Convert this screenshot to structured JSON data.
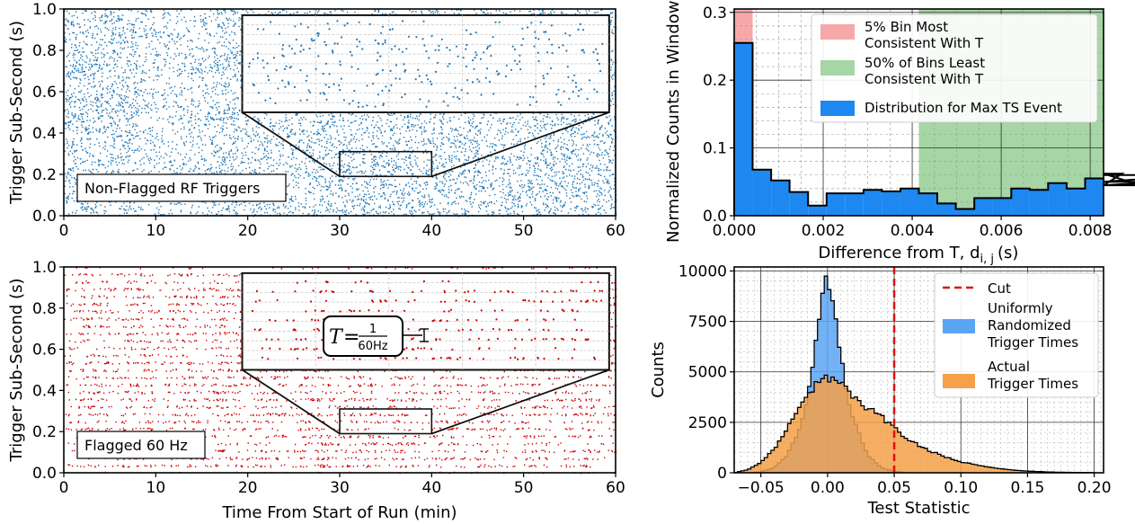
{
  "chart_data": [
    {
      "id": "A",
      "type": "scatter",
      "xlabel": "",
      "ylabel": "Trigger Sub-Second (s)",
      "xlim": [
        0,
        60
      ],
      "ylim": [
        0,
        1.0
      ],
      "xticks": [
        "0",
        "10",
        "20",
        "30",
        "40",
        "50",
        "60"
      ],
      "yticks": [
        "0.0",
        "0.2",
        "0.4",
        "0.6",
        "0.8",
        "1.0"
      ],
      "annotation": "Non-Flagged RF Triggers",
      "color": "#1f77b4",
      "distribution": "uniform",
      "inset": {
        "zoom_x": [
          30,
          40
        ],
        "zoom_y": [
          0.19,
          0.31
        ]
      }
    },
    {
      "id": "B",
      "type": "scatter",
      "xlabel": "Time From Start of Run (min)",
      "ylabel": "Trigger Sub-Second (s)",
      "xlim": [
        0,
        60
      ],
      "ylim": [
        0,
        1.0
      ],
      "xticks": [
        "0",
        "10",
        "20",
        "30",
        "40",
        "50",
        "60"
      ],
      "yticks": [
        "0.0",
        "0.2",
        "0.4",
        "0.6",
        "0.8",
        "1.0"
      ],
      "annotation": "Flagged 60 Hz",
      "color": "#cc0000",
      "distribution": "periodic bands",
      "inset": {
        "zoom_x": [
          30,
          40
        ],
        "zoom_y": [
          0.19,
          0.31
        ],
        "formula_lhs": "T",
        "formula_num": "1",
        "formula_den": "60Hz"
      }
    },
    {
      "id": "C",
      "type": "bar",
      "xlabel": "Difference from T, d",
      "xlabel_sub": "i, j",
      "xlabel_unit": "(s)",
      "ylabel": "Normalized Counts in Window w",
      "xlim": [
        0,
        0.0083
      ],
      "ylim": [
        0,
        0.305
      ],
      "xticks": [
        "0.000",
        "0.002",
        "0.004",
        "0.006",
        "0.008"
      ],
      "yticks": [
        "0.0",
        "0.1",
        "0.2",
        "0.3"
      ],
      "bin_width": 0.000415,
      "values": [
        0.255,
        0.068,
        0.052,
        0.035,
        0.015,
        0.033,
        0.033,
        0.038,
        0.036,
        0.04,
        0.033,
        0.018,
        0.01,
        0.026,
        0.026,
        0.04,
        0.038,
        0.048,
        0.04,
        0.055,
        0.045,
        0.062,
        0.045,
        0.05,
        0.05,
        0.06,
        0.06
      ],
      "shade_red": [
        0,
        0.000415
      ],
      "shade_green": [
        0.00415,
        0.0083
      ],
      "colors": {
        "bar": "#1e88f0",
        "red": "#f7a8a8",
        "green": "#a6d5a6"
      },
      "legend": [
        {
          "name": "5% Bin Most Consistent With T",
          "line1": "5% Bin Most",
          "line2": "Consistent With T",
          "color": "#f7a8a8"
        },
        {
          "name": "50% of Bins Least Consistent With T",
          "line1": "50% of Bins Least",
          "line2": "Consistent With T",
          "color": "#a6d5a6"
        },
        {
          "name": "Distribution for Max TS Event",
          "line1": "Distribution for Max TS Event",
          "line2": "",
          "color": "#1e88f0"
        }
      ]
    },
    {
      "id": "D",
      "type": "area",
      "xlabel": "Test Statistic",
      "ylabel": "Counts",
      "xlim": [
        -0.07,
        0.207
      ],
      "ylim": [
        0,
        10200
      ],
      "xticks": [
        "−0.05",
        "0.00",
        "0.05",
        "0.10",
        "0.15",
        "0.20"
      ],
      "yticks": [
        "0",
        "2500",
        "5000",
        "7500",
        "10000"
      ],
      "cut": 0.05,
      "series": [
        {
          "name": "Uniformly Randomized Trigger Times",
          "color": "#5aa5f2",
          "x": [
            -0.06,
            -0.05,
            -0.04,
            -0.03,
            -0.02,
            -0.015,
            -0.01,
            -0.005,
            -0.002,
            0.0,
            0.002,
            0.005,
            0.01,
            0.015,
            0.02,
            0.03,
            0.04,
            0.05,
            0.06
          ],
          "values": [
            0,
            50,
            250,
            900,
            2300,
            3800,
            6000,
            8300,
            9500,
            9800,
            9300,
            8000,
            5700,
            3800,
            2500,
            900,
            250,
            80,
            0
          ]
        },
        {
          "name": "Actual Trigger Times",
          "color": "#f5a04a",
          "x": [
            -0.07,
            -0.06,
            -0.05,
            -0.04,
            -0.03,
            -0.02,
            -0.01,
            0.0,
            0.01,
            0.02,
            0.03,
            0.04,
            0.05,
            0.06,
            0.07,
            0.08,
            0.09,
            0.1,
            0.11,
            0.12,
            0.13,
            0.14,
            0.15,
            0.17,
            0.2
          ],
          "values": [
            0,
            150,
            500,
            1200,
            2200,
            3300,
            4300,
            4700,
            4400,
            3700,
            3200,
            2800,
            2200,
            1700,
            1300,
            1000,
            750,
            550,
            400,
            280,
            200,
            130,
            80,
            30,
            5
          ]
        }
      ],
      "legend": [
        {
          "name": "Cut",
          "line1": "Cut",
          "line2": "",
          "line3": ""
        },
        {
          "name": "Uniformly Randomized Trigger Times",
          "line1": "Uniformly",
          "line2": "Randomized",
          "line3": "Trigger Times"
        },
        {
          "name": "Actual Trigger Times",
          "line1": "Actual",
          "line2": "Trigger Times",
          "line3": ""
        }
      ]
    }
  ]
}
